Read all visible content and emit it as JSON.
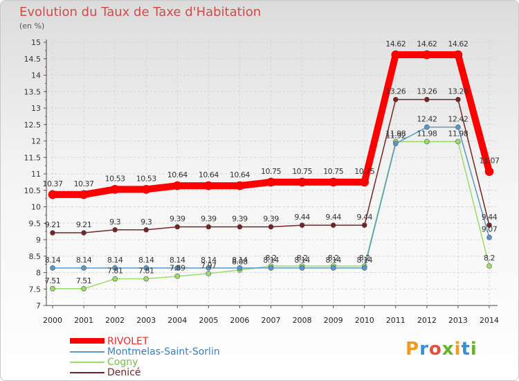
{
  "chart_data": {
    "type": "line",
    "title": "Evolution du Taux de Taxe d'Habitation",
    "subtitle": "(en %)",
    "x": [
      "2000",
      "2001",
      "2002",
      "2003",
      "2004",
      "2005",
      "2006",
      "2007",
      "2008",
      "2009",
      "2010",
      "2011",
      "2012",
      "2013",
      "2014"
    ],
    "ylim": [
      7,
      15
    ],
    "yticks": [
      "7",
      "7.5",
      "8",
      "8.5",
      "9",
      "9.5",
      "10",
      "10.5",
      "11",
      "11.5",
      "12",
      "12.5",
      "13",
      "13.5",
      "14",
      "14.5",
      "15"
    ],
    "grid": true,
    "legend_position": "bottom-left",
    "series": [
      {
        "name": "RIVOLET",
        "color": "#ff0000",
        "values": [
          10.37,
          10.37,
          10.53,
          10.53,
          10.64,
          10.64,
          10.64,
          10.75,
          10.75,
          10.75,
          10.75,
          14.62,
          14.62,
          14.62,
          11.07
        ],
        "labels": [
          "10.37",
          "10.37",
          "10.53",
          "10.53",
          "10.64",
          "10.64",
          "10.64",
          "10.75",
          "10.75",
          "10.75",
          "10.75",
          "14.62",
          "14.62",
          "14.62",
          "11.07"
        ]
      },
      {
        "name": "Montmelas-Saint-Sorlin",
        "color": "#5599cc",
        "values": [
          8.14,
          8.14,
          8.14,
          8.14,
          8.14,
          8.14,
          8.14,
          8.14,
          8.14,
          8.14,
          8.14,
          11.92,
          12.42,
          12.42,
          9.07
        ],
        "labels": [
          "8.14",
          "8.14",
          "8.14",
          "8.14",
          "8.14",
          "8.14",
          "8.14",
          "8.14",
          "8.14",
          "8.14",
          "8.14",
          "11.92",
          "12.42",
          "12.42",
          "9.07"
        ]
      },
      {
        "name": "Cogny",
        "color": "#99dd66",
        "values": [
          7.51,
          7.51,
          7.81,
          7.81,
          7.89,
          7.97,
          8.08,
          8.2,
          8.2,
          8.2,
          8.2,
          11.98,
          11.98,
          11.98,
          8.2
        ],
        "labels": [
          "7.51",
          "7.51",
          "7.81",
          "7.81",
          "7.89",
          "7.97",
          "8.08",
          "8.2",
          "8.2",
          "8.2",
          "8.2",
          "11.98",
          "11.98",
          "11.98",
          "8.2"
        ]
      },
      {
        "name": "Denicé",
        "color": "#772222",
        "values": [
          9.21,
          9.21,
          9.3,
          9.3,
          9.39,
          9.39,
          9.39,
          9.39,
          9.44,
          9.44,
          9.44,
          13.26,
          13.26,
          13.26,
          9.44
        ],
        "labels": [
          "9.21",
          "9.21",
          "9.3",
          "9.3",
          "9.39",
          "9.39",
          "9.39",
          "9.39",
          "9.44",
          "9.44",
          "9.44",
          "13.26",
          "13.26",
          "13.26",
          "9.44"
        ]
      }
    ]
  },
  "logo": {
    "letters": [
      "P",
      "r",
      "o",
      "x",
      "i",
      "t",
      "i"
    ],
    "colors": [
      "#f39a1e",
      "#3a8fd0",
      "#e94e3d",
      "#66b32e",
      "#f39a1e",
      "#3a8fd0",
      "#66b32e"
    ]
  }
}
